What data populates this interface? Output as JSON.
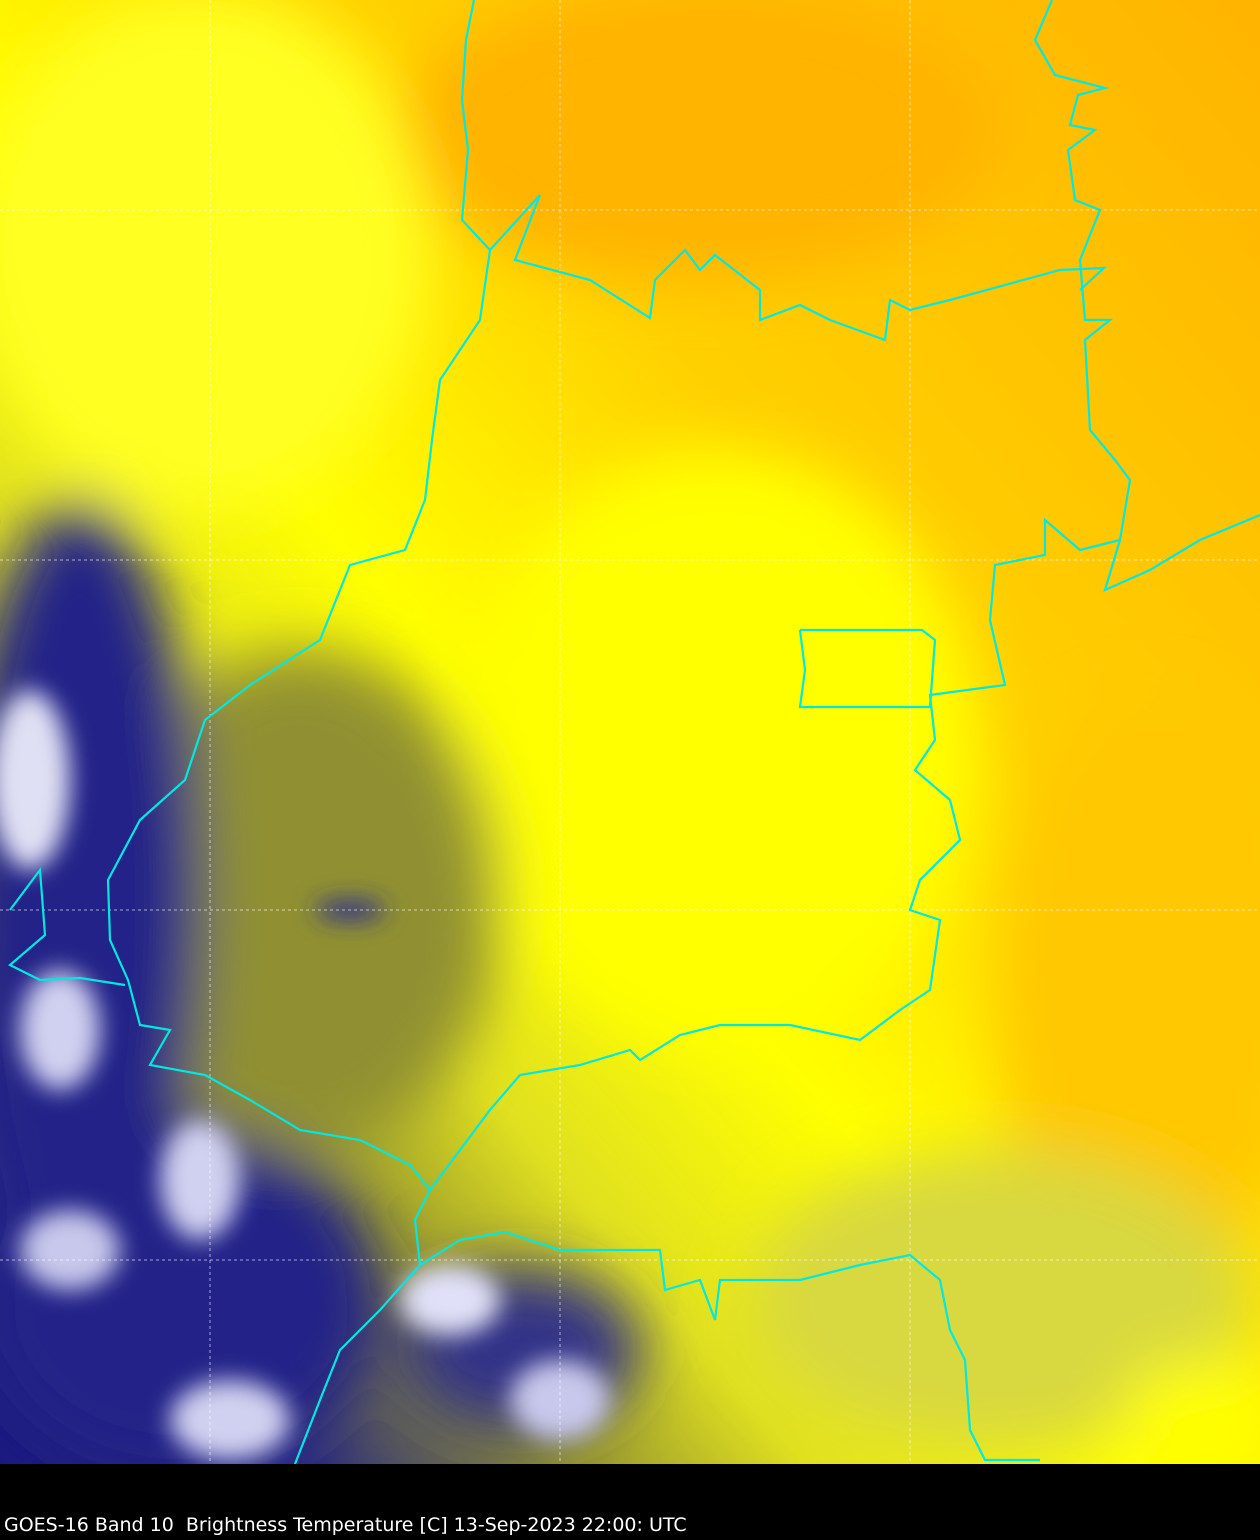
{
  "caption": "GOES-16 Band 10  Brightness Temperature [C] 13-Sep-2023 22:00: UTC",
  "colors": {
    "warm": "#ffb400",
    "mid": "#ffff00",
    "olive": "#8f8f30",
    "cold": "#1a1a80",
    "coldest": "#e8e8f8",
    "borders": "#00e8e0",
    "grid": "#ffffff"
  },
  "layers": [
    "brightness-temperature-image",
    "political-borders",
    "lat-lon-grid"
  ]
}
